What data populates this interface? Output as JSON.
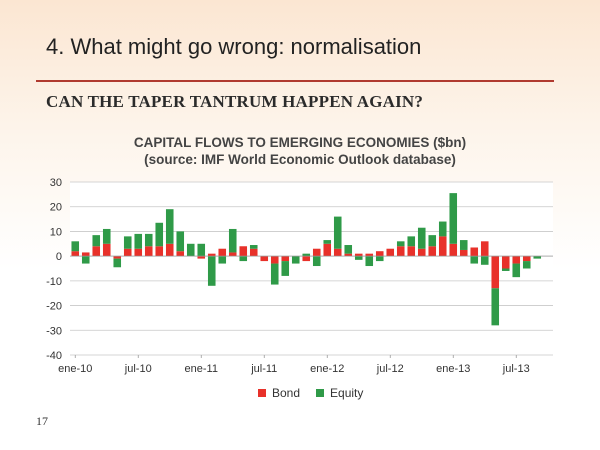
{
  "slide": {
    "title": "4. What might go wrong: normalisation",
    "subtitle": "CAN THE TAPER TANTRUM HAPPEN AGAIN?",
    "slide_number": "17"
  },
  "chart_data": {
    "type": "bar",
    "stacked": true,
    "title": "CAPITAL FLOWS TO EMERGING ECONOMIES ($bn)",
    "subtitle": "(source: IMF World Economic Outlook database)",
    "xlabel": "",
    "ylabel": "",
    "ylim": [
      -40,
      30
    ],
    "yticks": [
      30,
      20,
      10,
      0,
      -10,
      -20,
      -30,
      -40
    ],
    "xtick_labels": [
      "ene-10",
      "jul-10",
      "ene-11",
      "jul-11",
      "ene-12",
      "jul-12",
      "ene-13",
      "jul-13"
    ],
    "xtick_month_index": [
      0,
      6,
      12,
      18,
      24,
      30,
      36,
      42
    ],
    "months": 46,
    "grid": true,
    "legend_position": "bottom",
    "series": [
      {
        "name": "Bond",
        "color": "#e8312a",
        "values": [
          2,
          1.5,
          4,
          5,
          -1,
          3,
          3,
          4,
          4,
          5,
          2,
          0,
          -1,
          1,
          3,
          1.5,
          4,
          3,
          -2,
          -3,
          -2,
          0,
          -2,
          3,
          5,
          3,
          1,
          1,
          1,
          2,
          3,
          4,
          4,
          3,
          4,
          8,
          5,
          2.5,
          3.5,
          6,
          -13,
          -5,
          -3,
          -2,
          0,
          0
        ]
      },
      {
        "name": "Equity",
        "color": "#2f9a48",
        "values": [
          4,
          -3,
          4.5,
          6,
          -3.5,
          5,
          6,
          5,
          9.5,
          14,
          8,
          5,
          5,
          -12,
          -3,
          9.5,
          -2,
          1.5,
          0,
          -8.5,
          -6,
          -3,
          1,
          -4,
          1.5,
          13,
          3.5,
          -1.5,
          -4,
          -2,
          0,
          2,
          4,
          8.5,
          4.5,
          6,
          20.5,
          4,
          -3,
          -3.5,
          -15,
          -1,
          -5.5,
          -3,
          -1,
          0
        ]
      }
    ]
  }
}
